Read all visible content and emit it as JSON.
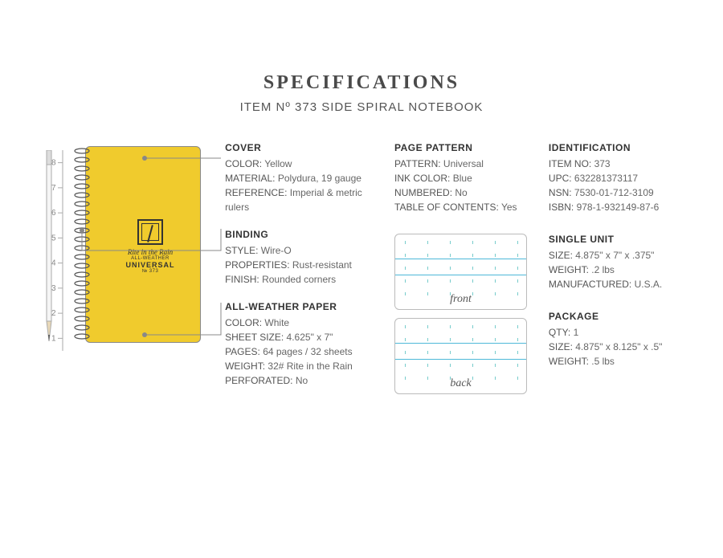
{
  "header": {
    "title": "SPECIFICATIONS",
    "subtitle_prefix": "ITEM Nº",
    "item_no": "373",
    "product": "SIDE SPIRAL NOTEBOOK"
  },
  "diagram": {
    "ruler_marks": [
      "1",
      "2",
      "3",
      "4",
      "5",
      "6",
      "7",
      "8"
    ],
    "notebook_color": "#f0cb2d",
    "logo_script": "Rite in the Rain",
    "logo_sub": "ALL-WEATHER",
    "logo_main": "UNIVERSAL",
    "logo_code": "№ 373"
  },
  "cover": {
    "heading": "COVER",
    "rows": [
      {
        "k": "COLOR",
        "v": "Yellow"
      },
      {
        "k": "MATERIAL",
        "v": "Polydura, 19 gauge"
      },
      {
        "k": "REFERENCE",
        "v": "Imperial & metric rulers"
      }
    ]
  },
  "binding": {
    "heading": "BINDING",
    "rows": [
      {
        "k": "STYLE",
        "v": "Wire-O"
      },
      {
        "k": "PROPERTIES",
        "v": "Rust-resistant"
      },
      {
        "k": "FINISH",
        "v": "Rounded corners"
      }
    ]
  },
  "paper": {
    "heading": "ALL-WEATHER PAPER",
    "rows": [
      {
        "k": "COLOR",
        "v": "White"
      },
      {
        "k": "SHEET SIZE",
        "v": "4.625\" x 7\""
      },
      {
        "k": "PAGES",
        "v": "64 pages / 32 sheets"
      },
      {
        "k": "WEIGHT",
        "v": "32# Rite in the Rain"
      },
      {
        "k": "PERFORATED",
        "v": "No"
      }
    ]
  },
  "pattern": {
    "heading": "PAGE PATTERN",
    "rows": [
      {
        "k": "PATTERN",
        "v": "Universal"
      },
      {
        "k": "INK COLOR",
        "v": "Blue"
      },
      {
        "k": "NUMBERED",
        "v": "No"
      },
      {
        "k": "TABLE OF CONTENTS",
        "v": "Yes"
      }
    ],
    "front_label": "front",
    "back_label": "back",
    "line_color": "#4db8d8",
    "dot_color": "#7fcccc"
  },
  "identification": {
    "heading": "IDENTIFICATION",
    "rows": [
      {
        "k": "ITEM NO",
        "v": "373"
      },
      {
        "k": "UPC",
        "v": "632281373117"
      },
      {
        "k": "NSN",
        "v": "7530-01-712-3109"
      },
      {
        "k": "ISBN",
        "v": "978-1-932149-87-6"
      }
    ]
  },
  "single_unit": {
    "heading": "SINGLE UNIT",
    "rows": [
      {
        "k": "SIZE",
        "v": "4.875\" x 7\" x .375\""
      },
      {
        "k": "WEIGHT",
        "v": ".2 lbs"
      },
      {
        "k": "MANUFACTURED",
        "v": "U.S.A."
      }
    ]
  },
  "package": {
    "heading": "PACKAGE",
    "rows": [
      {
        "k": "QTY",
        "v": "1"
      },
      {
        "k": "SIZE",
        "v": "4.875\" x 8.125\" x .5\""
      },
      {
        "k": "WEIGHT",
        "v": ".5 lbs"
      }
    ]
  }
}
